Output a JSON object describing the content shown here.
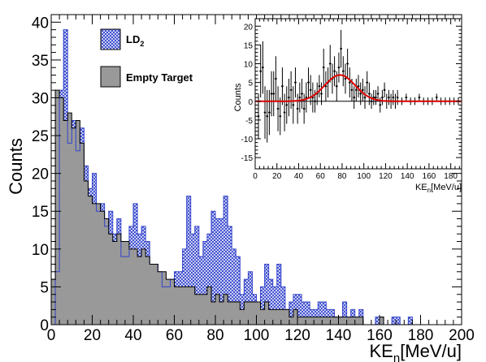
{
  "chart_data": [
    {
      "type": "bar",
      "xlabel_main": "KE",
      "xlabel_sub": "n",
      "xlabel_units": "[MeV/u]",
      "ylabel": "Counts",
      "xlim": [
        0,
        200
      ],
      "ylim": [
        0,
        41
      ],
      "xticks": [
        "0",
        "20",
        "40",
        "60",
        "80",
        "100",
        "120",
        "140",
        "160",
        "180",
        "200"
      ],
      "yticks": [
        "0",
        "5",
        "10",
        "15",
        "20",
        "25",
        "30",
        "35",
        "40"
      ],
      "bin_width": 2,
      "legend_placement": "top-left",
      "series": [
        {
          "name": "LD",
          "name_sub": "2",
          "color": "#3344cc",
          "fill": "blue crosshatch",
          "values": [
            0,
            7,
            31,
            39,
            24,
            27,
            23,
            26,
            21,
            18,
            20,
            15,
            16,
            13,
            15,
            12,
            14,
            9,
            9,
            13,
            16,
            12,
            13,
            11,
            8,
            8,
            7,
            5,
            5,
            6,
            7,
            7,
            10,
            17,
            12,
            13,
            9,
            11,
            12,
            15,
            14,
            14,
            17,
            13,
            10,
            9,
            4,
            6,
            7,
            4,
            3,
            5,
            8,
            6,
            5,
            8,
            5,
            2,
            3,
            4,
            4,
            3,
            3,
            2,
            2,
            3,
            3,
            2,
            2,
            1,
            1,
            3,
            1,
            2,
            1,
            2,
            0,
            0,
            0,
            1,
            1,
            0,
            0,
            1,
            1,
            0,
            0,
            1,
            0,
            0,
            0,
            0,
            0,
            0,
            0,
            0,
            0,
            0,
            0,
            0
          ]
        },
        {
          "name": "Empty Target",
          "color": "#999999",
          "fill": "grey solid",
          "values": [
            6,
            31,
            30,
            27,
            28,
            26,
            27,
            24,
            19,
            17,
            16,
            16,
            15,
            14,
            12,
            11,
            12,
            11,
            11,
            10,
            10,
            9,
            10,
            9,
            8,
            8,
            7,
            7,
            6,
            6,
            5,
            5,
            5,
            5,
            5,
            4,
            4,
            4,
            5,
            3,
            4,
            3,
            4,
            3,
            3,
            3,
            2,
            3,
            3,
            3,
            3,
            2,
            3,
            2,
            2,
            2,
            2,
            2,
            1,
            2,
            1,
            1,
            1,
            1,
            1,
            1,
            1,
            1,
            1,
            1,
            1,
            1,
            1,
            1,
            1,
            1,
            0,
            0,
            0,
            0,
            1,
            0,
            0,
            0,
            0,
            0,
            0,
            0,
            0,
            0,
            0,
            0,
            0,
            0,
            0,
            0,
            0,
            0,
            0,
            0
          ]
        }
      ]
    },
    {
      "type": "scatter",
      "title": "",
      "xlabel_main": "KE",
      "xlabel_sub": "n",
      "xlabel_units": "[MeV/u]",
      "ylabel": "Counts",
      "xlim": [
        0,
        190
      ],
      "ylim": [
        -18,
        22
      ],
      "xticks": [
        "0",
        "20",
        "40",
        "60",
        "80",
        "100",
        "120",
        "140",
        "160",
        "180"
      ],
      "yticks": [
        "-15",
        "-10",
        "-5",
        "0",
        "5",
        "10",
        "15",
        "20"
      ],
      "fit": {
        "type": "gaussian",
        "color": "#dd0000",
        "amplitude": 7.0,
        "mean": 78,
        "sigma": 14
      },
      "points": [
        {
          "x": 3,
          "y": -4,
          "err": 6
        },
        {
          "x": 5,
          "y": 8,
          "err": 7
        },
        {
          "x": 7,
          "y": 9,
          "err": 7
        },
        {
          "x": 9,
          "y": -3,
          "err": 7
        },
        {
          "x": 11,
          "y": -4,
          "err": 7
        },
        {
          "x": 13,
          "y": -3,
          "err": 6
        },
        {
          "x": 15,
          "y": 2,
          "err": 6
        },
        {
          "x": 17,
          "y": 2,
          "err": 6
        },
        {
          "x": 19,
          "y": 6,
          "err": 6
        },
        {
          "x": 21,
          "y": -2,
          "err": 6
        },
        {
          "x": 23,
          "y": -4,
          "err": 5
        },
        {
          "x": 25,
          "y": 4,
          "err": 5
        },
        {
          "x": 27,
          "y": -3,
          "err": 5
        },
        {
          "x": 29,
          "y": -1,
          "err": 5
        },
        {
          "x": 31,
          "y": 1,
          "err": 5
        },
        {
          "x": 33,
          "y": 3,
          "err": 5
        },
        {
          "x": 35,
          "y": -1,
          "err": 5
        },
        {
          "x": 37,
          "y": 5,
          "err": 4
        },
        {
          "x": 39,
          "y": -2,
          "err": 4
        },
        {
          "x": 41,
          "y": 1,
          "err": 4
        },
        {
          "x": 43,
          "y": 2,
          "err": 4
        },
        {
          "x": 45,
          "y": -2,
          "err": 4
        },
        {
          "x": 47,
          "y": 1,
          "err": 4
        },
        {
          "x": 49,
          "y": 5,
          "err": 4
        },
        {
          "x": 51,
          "y": 3,
          "err": 4
        },
        {
          "x": 53,
          "y": 1,
          "err": 4
        },
        {
          "x": 55,
          "y": 0,
          "err": 3
        },
        {
          "x": 57,
          "y": 2,
          "err": 3
        },
        {
          "x": 59,
          "y": 4,
          "err": 3
        },
        {
          "x": 61,
          "y": 2,
          "err": 3
        },
        {
          "x": 63,
          "y": 9,
          "err": 5
        },
        {
          "x": 65,
          "y": 4,
          "err": 4
        },
        {
          "x": 67,
          "y": 5,
          "err": 4
        },
        {
          "x": 69,
          "y": 10,
          "err": 5
        },
        {
          "x": 71,
          "y": 6,
          "err": 4
        },
        {
          "x": 73,
          "y": 8,
          "err": 4
        },
        {
          "x": 75,
          "y": 4,
          "err": 4
        },
        {
          "x": 77,
          "y": 9,
          "err": 4
        },
        {
          "x": 79,
          "y": 14,
          "err": 5
        },
        {
          "x": 81,
          "y": 8,
          "err": 4
        },
        {
          "x": 83,
          "y": 6,
          "err": 4
        },
        {
          "x": 85,
          "y": 10,
          "err": 4
        },
        {
          "x": 87,
          "y": 5,
          "err": 4
        },
        {
          "x": 89,
          "y": 3,
          "err": 3
        },
        {
          "x": 91,
          "y": 1,
          "err": 3
        },
        {
          "x": 93,
          "y": 3,
          "err": 3
        },
        {
          "x": 95,
          "y": 4,
          "err": 3
        },
        {
          "x": 97,
          "y": 2,
          "err": 3
        },
        {
          "x": 99,
          "y": 3,
          "err": 3
        },
        {
          "x": 101,
          "y": 1,
          "err": 3
        },
        {
          "x": 103,
          "y": 5,
          "err": 3
        },
        {
          "x": 105,
          "y": 2,
          "err": 3
        },
        {
          "x": 107,
          "y": 0,
          "err": 2
        },
        {
          "x": 109,
          "y": 1,
          "err": 2
        },
        {
          "x": 111,
          "y": 1,
          "err": 2
        },
        {
          "x": 113,
          "y": 2,
          "err": 2
        },
        {
          "x": 115,
          "y": -1,
          "err": 2
        },
        {
          "x": 117,
          "y": 1,
          "err": 2
        },
        {
          "x": 119,
          "y": 3,
          "err": 2
        },
        {
          "x": 121,
          "y": 0,
          "err": 2
        },
        {
          "x": 123,
          "y": 1,
          "err": 2
        },
        {
          "x": 125,
          "y": 0,
          "err": 2
        },
        {
          "x": 127,
          "y": 1,
          "err": 2
        },
        {
          "x": 129,
          "y": 0,
          "err": 2
        },
        {
          "x": 131,
          "y": 1,
          "err": 2
        },
        {
          "x": 135,
          "y": 0,
          "err": 1
        },
        {
          "x": 139,
          "y": 1,
          "err": 1
        },
        {
          "x": 143,
          "y": 0,
          "err": 1
        },
        {
          "x": 147,
          "y": 0,
          "err": 1
        },
        {
          "x": 151,
          "y": 1,
          "err": 1
        },
        {
          "x": 155,
          "y": 0,
          "err": 1
        },
        {
          "x": 159,
          "y": 0,
          "err": 1
        },
        {
          "x": 163,
          "y": 0,
          "err": 1
        },
        {
          "x": 167,
          "y": 1,
          "err": 1
        },
        {
          "x": 171,
          "y": 0,
          "err": 1
        },
        {
          "x": 175,
          "y": 0,
          "err": 1
        },
        {
          "x": 179,
          "y": 0,
          "err": 1
        },
        {
          "x": 183,
          "y": 0,
          "err": 1
        },
        {
          "x": 187,
          "y": 0,
          "err": 1
        }
      ]
    }
  ]
}
